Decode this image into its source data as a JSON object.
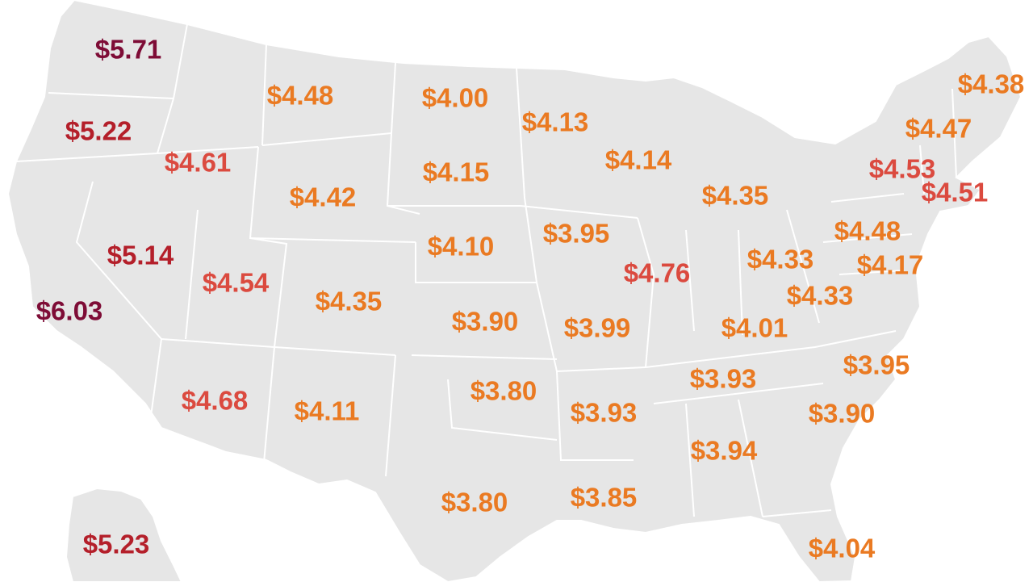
{
  "colors": {
    "land": "#e6e6e6",
    "border": "#ffffff",
    "tier_low": "#ea7a22",
    "tier_mid": "#db4a3f",
    "tier_high": "#b41f2a",
    "tier_top": "#7e0c36"
  },
  "prices": [
    {
      "key": "wa",
      "value": "$5.71",
      "tier": "tier_top"
    },
    {
      "key": "or",
      "value": "$5.22",
      "tier": "tier_high"
    },
    {
      "key": "ca",
      "value": "$6.03",
      "tier": "tier_top"
    },
    {
      "key": "nv",
      "value": "$5.14",
      "tier": "tier_high"
    },
    {
      "key": "id",
      "value": "$4.61",
      "tier": "tier_mid"
    },
    {
      "key": "mt",
      "value": "$4.48",
      "tier": "tier_low"
    },
    {
      "key": "wy",
      "value": "$4.42",
      "tier": "tier_low"
    },
    {
      "key": "ut",
      "value": "$4.54",
      "tier": "tier_mid"
    },
    {
      "key": "co",
      "value": "$4.35",
      "tier": "tier_low"
    },
    {
      "key": "az",
      "value": "$4.68",
      "tier": "tier_mid"
    },
    {
      "key": "nm",
      "value": "$4.11",
      "tier": "tier_low"
    },
    {
      "key": "nd",
      "value": "$4.00",
      "tier": "tier_low"
    },
    {
      "key": "sd",
      "value": "$4.15",
      "tier": "tier_low"
    },
    {
      "key": "ne",
      "value": "$4.10",
      "tier": "tier_low"
    },
    {
      "key": "ks",
      "value": "$3.90",
      "tier": "tier_low"
    },
    {
      "key": "ok",
      "value": "$3.80",
      "tier": "tier_low"
    },
    {
      "key": "tx",
      "value": "$3.80",
      "tier": "tier_low"
    },
    {
      "key": "mn",
      "value": "$4.13",
      "tier": "tier_low"
    },
    {
      "key": "ia",
      "value": "$3.95",
      "tier": "tier_low"
    },
    {
      "key": "mo",
      "value": "$3.99",
      "tier": "tier_low"
    },
    {
      "key": "ar",
      "value": "$3.93",
      "tier": "tier_low"
    },
    {
      "key": "la",
      "value": "$3.85",
      "tier": "tier_low"
    },
    {
      "key": "wi",
      "value": "$4.14",
      "tier": "tier_low"
    },
    {
      "key": "il",
      "value": "$4.76",
      "tier": "tier_mid"
    },
    {
      "key": "mi",
      "value": "$4.35",
      "tier": "tier_low"
    },
    {
      "key": "in",
      "value": "$4.33",
      "tier": "tier_low"
    },
    {
      "key": "oh",
      "value": "$4.48",
      "tier": "tier_low"
    },
    {
      "key": "ky",
      "value": "$4.01",
      "tier": "tier_low"
    },
    {
      "key": "tn",
      "value": "$3.93",
      "tier": "tier_low"
    },
    {
      "key": "al",
      "value": "$3.94",
      "tier": "tier_low"
    },
    {
      "key": "ga_sc",
      "value": "$3.90",
      "tier": "tier_low"
    },
    {
      "key": "nc",
      "value": "$3.95",
      "tier": "tier_low"
    },
    {
      "key": "va",
      "value": "$4.33",
      "tier": "tier_low"
    },
    {
      "key": "md",
      "value": "$4.17",
      "tier": "tier_low"
    },
    {
      "key": "fl",
      "value": "$4.04",
      "tier": "tier_low"
    },
    {
      "key": "ny",
      "value": "$4.53",
      "tier": "tier_mid"
    },
    {
      "key": "ct",
      "value": "$4.51",
      "tier": "tier_mid"
    },
    {
      "key": "vt_nh",
      "value": "$4.47",
      "tier": "tier_low"
    },
    {
      "key": "me",
      "value": "$4.38",
      "tier": "tier_low"
    },
    {
      "key": "ak",
      "value": "$5.23",
      "tier": "tier_high"
    }
  ]
}
